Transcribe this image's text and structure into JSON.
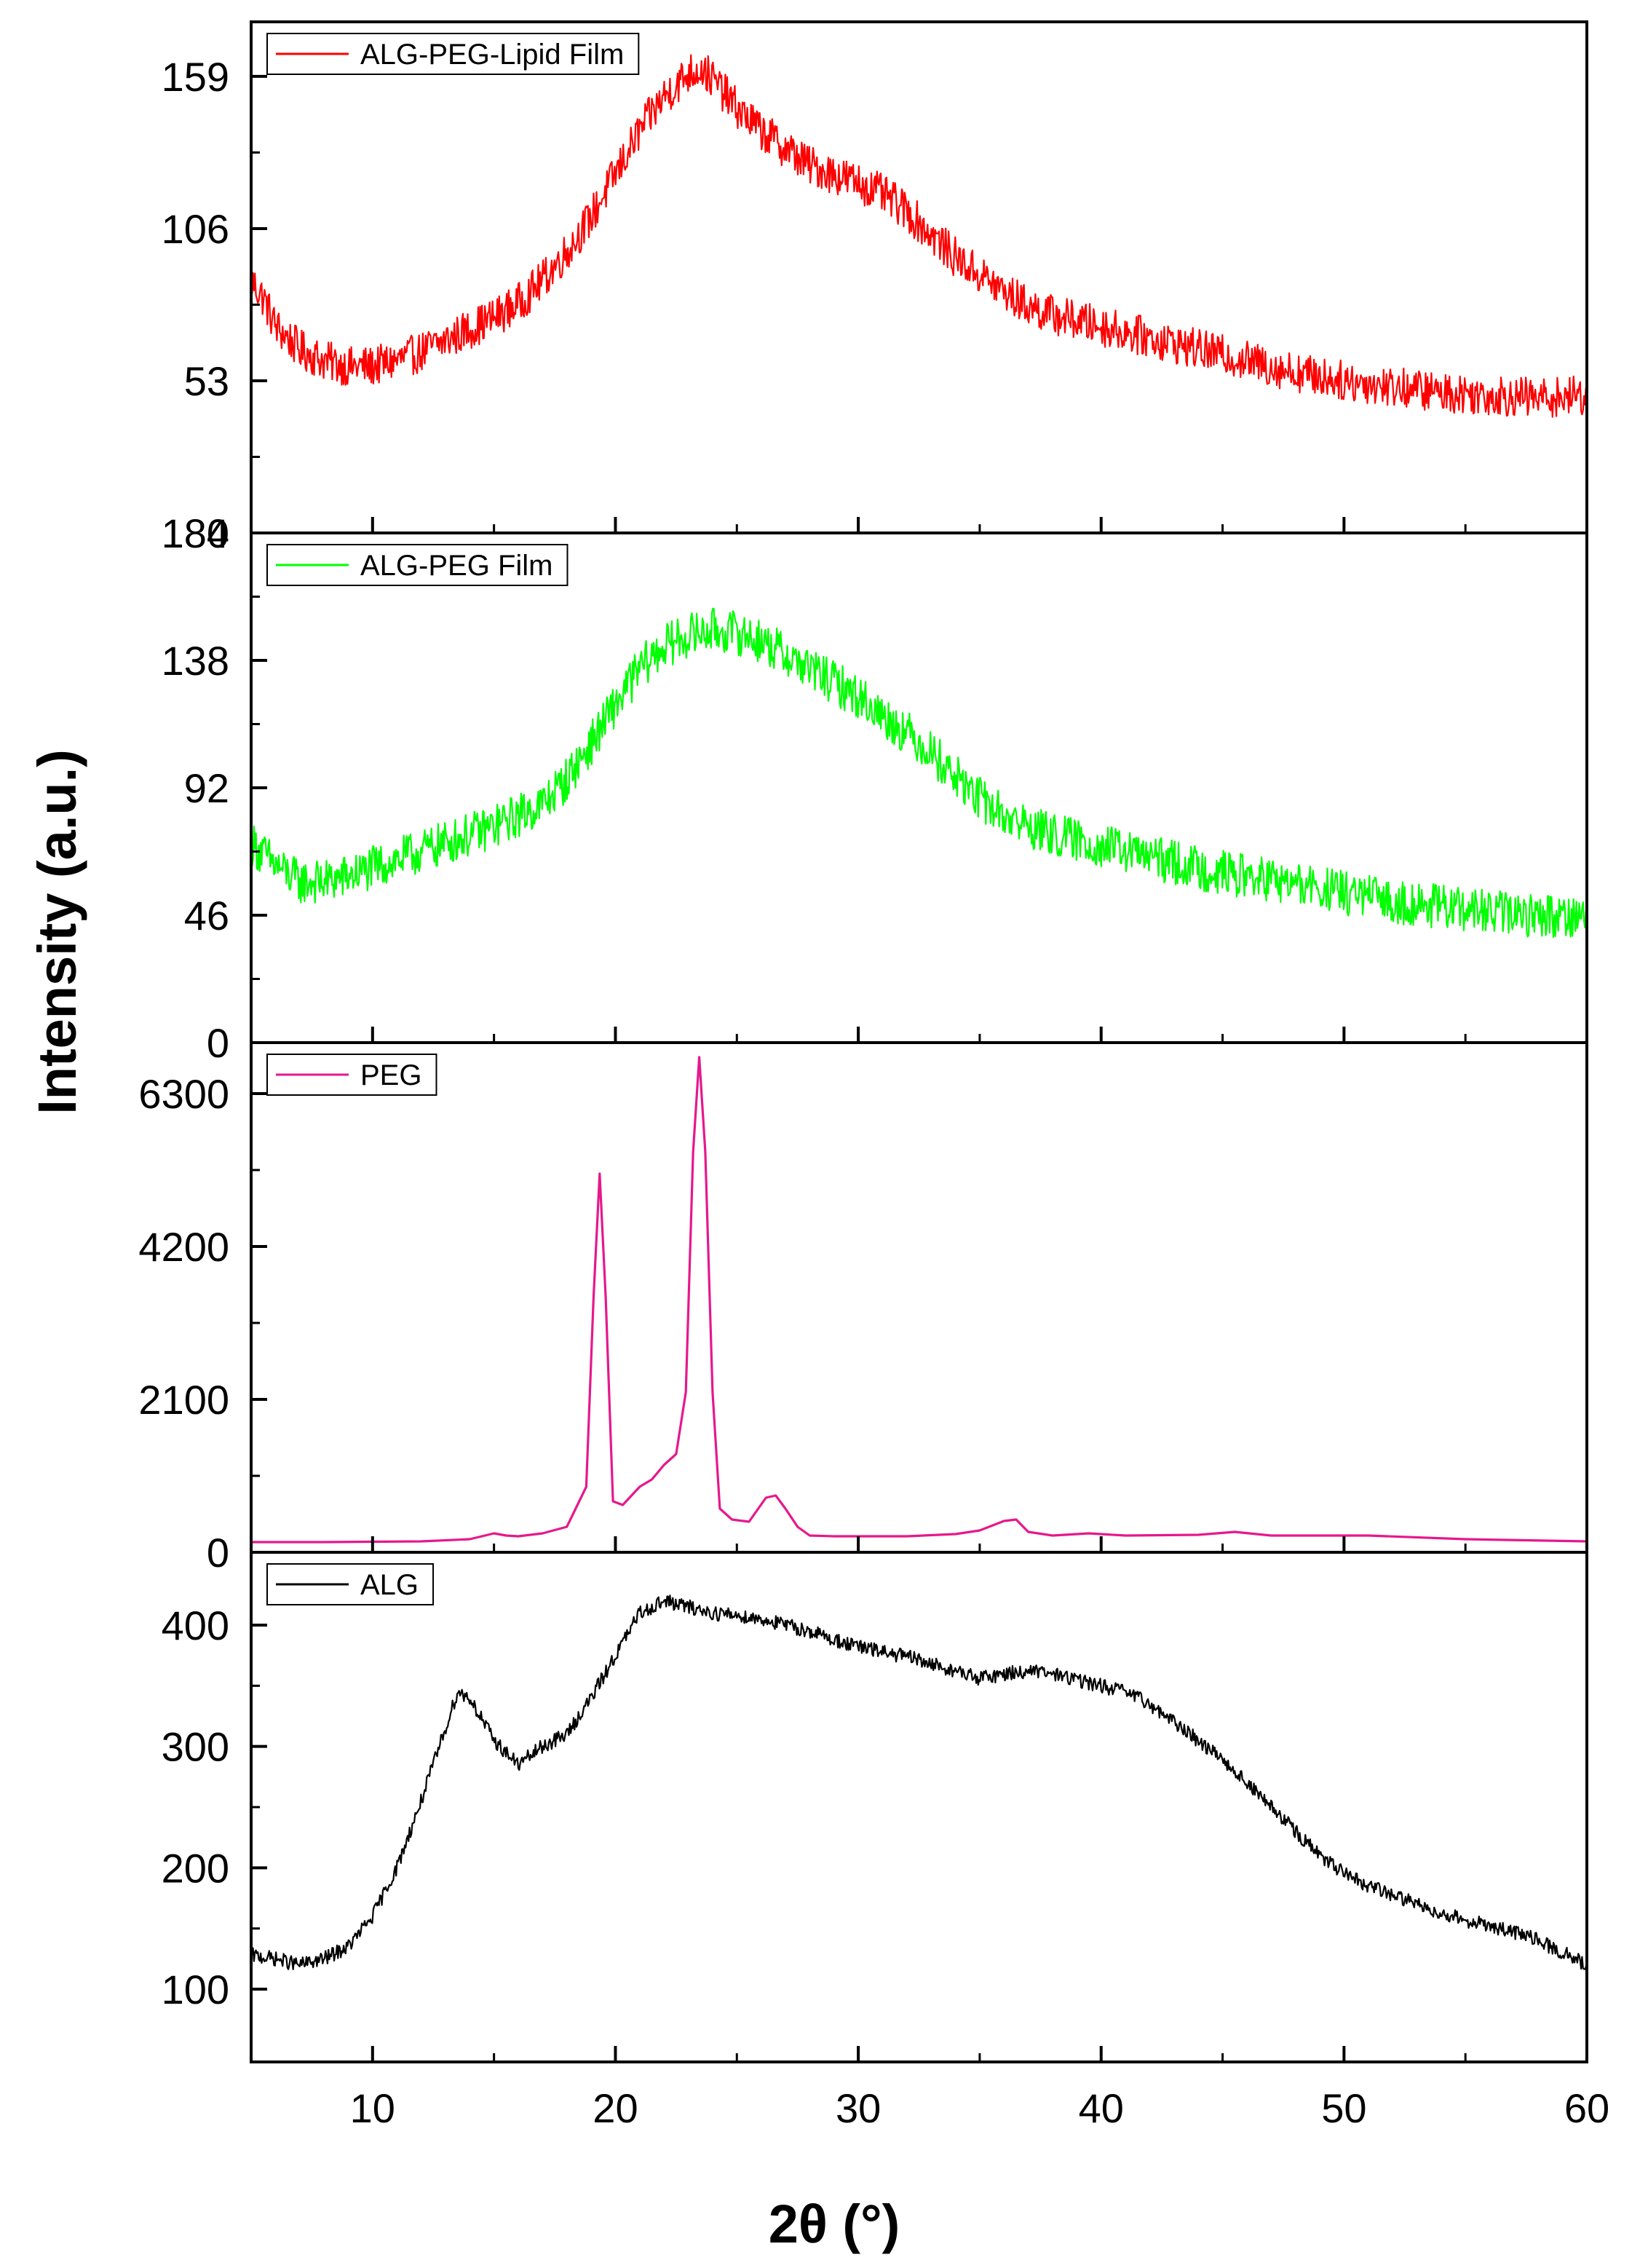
{
  "chart_data": {
    "type": "line",
    "xlabel": "2θ (°)",
    "ylabel": "Intensity (a.u.)",
    "xlim": [
      5,
      60
    ],
    "xticks": [
      10,
      20,
      30,
      40,
      50,
      60
    ],
    "xtick_labels": [
      "10",
      "20",
      "30",
      "40",
      "50",
      "60"
    ],
    "panels": [
      {
        "name": "ALG-PEG-Lipid Film",
        "color": "#ff0000",
        "ylim": [
          0,
          178
        ],
        "yticks": [
          0,
          53,
          106,
          159
        ],
        "ytick_labels": [
          "0",
          "53",
          "106",
          "159"
        ],
        "noise": 7,
        "x": [
          5,
          5.5,
          6,
          7,
          8,
          9,
          10,
          11,
          12,
          13,
          14,
          15,
          16,
          17,
          18,
          19,
          20,
          21,
          22,
          23,
          23.5,
          24,
          25,
          26,
          27,
          28,
          29,
          30,
          31,
          32,
          33,
          34,
          35,
          36,
          37,
          38,
          40,
          42,
          44,
          46,
          48,
          50,
          52,
          54,
          56,
          58,
          60
        ],
        "y": [
          88,
          82,
          72,
          64,
          60,
          58,
          58,
          60,
          63,
          67,
          71,
          75,
          80,
          88,
          98,
          110,
          125,
          140,
          152,
          160,
          162,
          158,
          148,
          140,
          134,
          128,
          125,
          122,
          118,
          112,
          104,
          96,
          90,
          84,
          79,
          76,
          72,
          68,
          64,
          60,
          56,
          53,
          51,
          49,
          48,
          47,
          48
        ]
      },
      {
        "name": "ALG-PEG Film",
        "color": "#00ff00",
        "ylim": [
          0,
          184
        ],
        "yticks": [
          0,
          46,
          92,
          138,
          184
        ],
        "ytick_labels": [
          "0",
          "46",
          "92",
          "138",
          "184"
        ],
        "noise": 8,
        "x": [
          5,
          6,
          7,
          8,
          9,
          10,
          11,
          12,
          13,
          14,
          15,
          16,
          17,
          18,
          19,
          20,
          21,
          22,
          23,
          24,
          25,
          26,
          27,
          28,
          29,
          30,
          31,
          32,
          33,
          34,
          35,
          36,
          37,
          38,
          40,
          42,
          44,
          46,
          48,
          50,
          52,
          54,
          56,
          58,
          60
        ],
        "y": [
          72,
          64,
          58,
          58,
          60,
          63,
          66,
          69,
          72,
          75,
          78,
          82,
          86,
          95,
          108,
          122,
          135,
          143,
          147,
          149,
          148,
          145,
          140,
          135,
          130,
          125,
          118,
          112,
          105,
          96,
          88,
          82,
          78,
          75,
          71,
          67,
          63,
          60,
          57,
          54,
          51,
          49,
          47,
          46,
          46
        ]
      },
      {
        "name": "PEG",
        "color": "#e6188c",
        "ylim": [
          0,
          7000
        ],
        "yticks": [
          0,
          2100,
          4200,
          6300
        ],
        "ytick_labels": [
          "0",
          "2100",
          "4200",
          "6300"
        ],
        "noise": 0,
        "x": [
          5,
          8,
          12,
          14,
          15,
          15.5,
          16,
          17,
          18,
          18.8,
          19.1,
          19.35,
          19.6,
          19.9,
          20.3,
          21,
          21.5,
          22,
          22.5,
          22.9,
          23.2,
          23.45,
          23.7,
          24.0,
          24.3,
          24.8,
          25.5,
          26.2,
          26.6,
          27,
          27.5,
          28,
          29,
          32,
          34,
          35,
          36,
          36.5,
          37,
          38,
          39.5,
          41,
          44,
          45.5,
          47,
          49,
          51,
          55,
          60
        ],
        "y": [
          140,
          140,
          150,
          180,
          260,
          230,
          220,
          260,
          350,
          900,
          3500,
          5200,
          3500,
          700,
          650,
          900,
          1000,
          1200,
          1350,
          2200,
          5500,
          6800,
          5500,
          2200,
          600,
          450,
          420,
          750,
          780,
          600,
          350,
          230,
          220,
          220,
          250,
          300,
          430,
          450,
          280,
          230,
          260,
          230,
          240,
          280,
          230,
          230,
          230,
          180,
          150
        ]
      },
      {
        "name": "ALG",
        "color": "#000000",
        "ylim": [
          40,
          460
        ],
        "yticks": [
          100,
          200,
          300,
          400
        ],
        "ytick_labels": [
          "100",
          "200",
          "300",
          "400"
        ],
        "noise": 6,
        "x": [
          5,
          6,
          7,
          8,
          9,
          10,
          11,
          12,
          13,
          13.5,
          14,
          15,
          16,
          17,
          18,
          19,
          20,
          21,
          22,
          23,
          24,
          25,
          26,
          27,
          28,
          29,
          30,
          31,
          32,
          33,
          34,
          35,
          36,
          37,
          38,
          39,
          40,
          41,
          42,
          43,
          44,
          45,
          46,
          47,
          48,
          49,
          50,
          51,
          52,
          53,
          54,
          55,
          56,
          57,
          58,
          59,
          60
        ],
        "y": [
          128,
          125,
          120,
          125,
          135,
          160,
          200,
          255,
          315,
          345,
          340,
          305,
          285,
          300,
          310,
          340,
          375,
          410,
          420,
          415,
          410,
          408,
          405,
          400,
          395,
          388,
          382,
          378,
          374,
          368,
          362,
          356,
          360,
          362,
          360,
          355,
          350,
          345,
          335,
          320,
          305,
          290,
          270,
          250,
          230,
          210,
          195,
          185,
          178,
          170,
          163,
          157,
          152,
          147,
          140,
          130,
          120
        ]
      }
    ]
  }
}
